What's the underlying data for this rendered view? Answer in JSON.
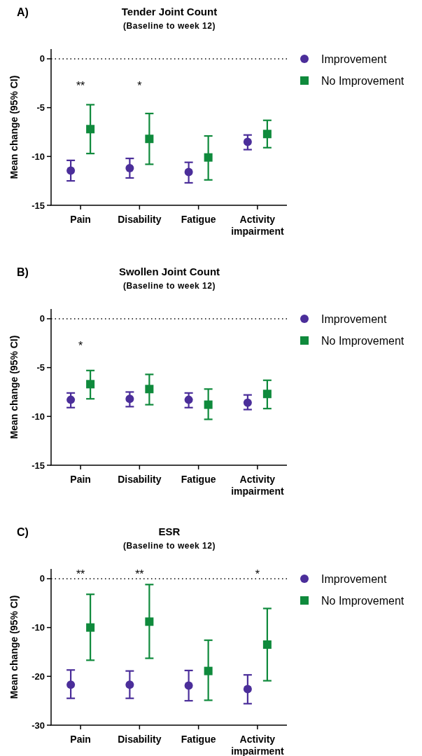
{
  "chart_data": [
    {
      "type": "scatter",
      "title": "Tender Joint Count",
      "subtitle": "(Baseline to week 12)",
      "ylabel": "Mean change (95% CI)",
      "categories": [
        "Pain",
        "Disability",
        "Fatigue",
        "Activity impairment"
      ],
      "ylim": [
        -15,
        1
      ],
      "yticks": [
        0,
        -5,
        -10,
        -15
      ],
      "legend": "right",
      "grid": false,
      "series": [
        {
          "name": "Improvement",
          "color": "#4b2e9a",
          "marker": "circle",
          "values": [
            -11.45,
            -11.2,
            -11.6,
            -8.5
          ],
          "errors": [
            [
              -12.5,
              -10.4
            ],
            [
              -12.2,
              -10.2
            ],
            [
              -12.7,
              -10.6
            ],
            [
              -9.3,
              -7.8
            ]
          ]
        },
        {
          "name": "No Improvement",
          "color": "#0f8a3c",
          "marker": "square",
          "values": [
            -7.2,
            -8.2,
            -10.1,
            -7.7
          ],
          "errors": [
            [
              -9.7,
              -4.7
            ],
            [
              -10.8,
              -5.6
            ],
            [
              -12.4,
              -7.9
            ],
            [
              -9.1,
              -6.3
            ]
          ]
        }
      ],
      "ref_lines": [
        {
          "axis": "y",
          "value": 0,
          "line_style": "dotted",
          "color": "#000000"
        }
      ],
      "annotations": [
        "A)",
        "**",
        "*"
      ]
    },
    {
      "type": "scatter",
      "title": "Swollen Joint Count",
      "subtitle": "(Baseline to week 12)",
      "ylabel": "Mean change (95% CI)",
      "categories": [
        "Pain",
        "Disability",
        "Fatigue",
        "Activity impairment"
      ],
      "ylim": [
        -15,
        1
      ],
      "yticks": [
        0,
        -5,
        -10,
        -15
      ],
      "legend": "right",
      "grid": false,
      "series": [
        {
          "name": "Improvement",
          "color": "#4b2e9a",
          "marker": "circle",
          "values": [
            -8.3,
            -8.2,
            -8.3,
            -8.6
          ],
          "errors": [
            [
              -9.1,
              -7.6
            ],
            [
              -9.0,
              -7.5
            ],
            [
              -9.1,
              -7.6
            ],
            [
              -9.3,
              -7.8
            ]
          ]
        },
        {
          "name": "No Improvement",
          "color": "#0f8a3c",
          "marker": "square",
          "values": [
            -6.7,
            -7.2,
            -8.8,
            -7.7
          ],
          "errors": [
            [
              -8.2,
              -5.3
            ],
            [
              -8.8,
              -5.7
            ],
            [
              -10.3,
              -7.2
            ],
            [
              -9.2,
              -6.3
            ]
          ]
        }
      ],
      "ref_lines": [
        {
          "axis": "y",
          "value": 0,
          "line_style": "dotted",
          "color": "#000000"
        }
      ],
      "annotations": [
        "B)",
        "*"
      ]
    },
    {
      "type": "scatter",
      "title": "ESR",
      "subtitle": "(Baseline to week 12)",
      "ylabel": "Mean change (95% CI)",
      "categories": [
        "Pain",
        "Disability",
        "Fatigue",
        "Activity impairment"
      ],
      "ylim": [
        -30,
        2
      ],
      "yticks": [
        0,
        -10,
        -20,
        -30
      ],
      "legend": "right",
      "grid": false,
      "series": [
        {
          "name": "Improvement",
          "color": "#4b2e9a",
          "marker": "circle",
          "values": [
            -21.7,
            -21.7,
            -21.9,
            -22.6
          ],
          "errors": [
            [
              -24.5,
              -18.7
            ],
            [
              -24.5,
              -18.9
            ],
            [
              -25.0,
              -18.8
            ],
            [
              -25.6,
              -19.7
            ]
          ]
        },
        {
          "name": "No Improvement",
          "color": "#0f8a3c",
          "marker": "square",
          "values": [
            -10.0,
            -8.8,
            -18.9,
            -13.5
          ],
          "errors": [
            [
              -16.7,
              -3.2
            ],
            [
              -16.3,
              -1.2
            ],
            [
              -24.9,
              -12.6
            ],
            [
              -20.9,
              -6.1
            ]
          ]
        }
      ],
      "ref_lines": [
        {
          "axis": "y",
          "value": 0,
          "line_style": "dotted",
          "color": "#000000"
        }
      ],
      "annotations": [
        "C)",
        "**",
        "**",
        "*"
      ]
    }
  ]
}
